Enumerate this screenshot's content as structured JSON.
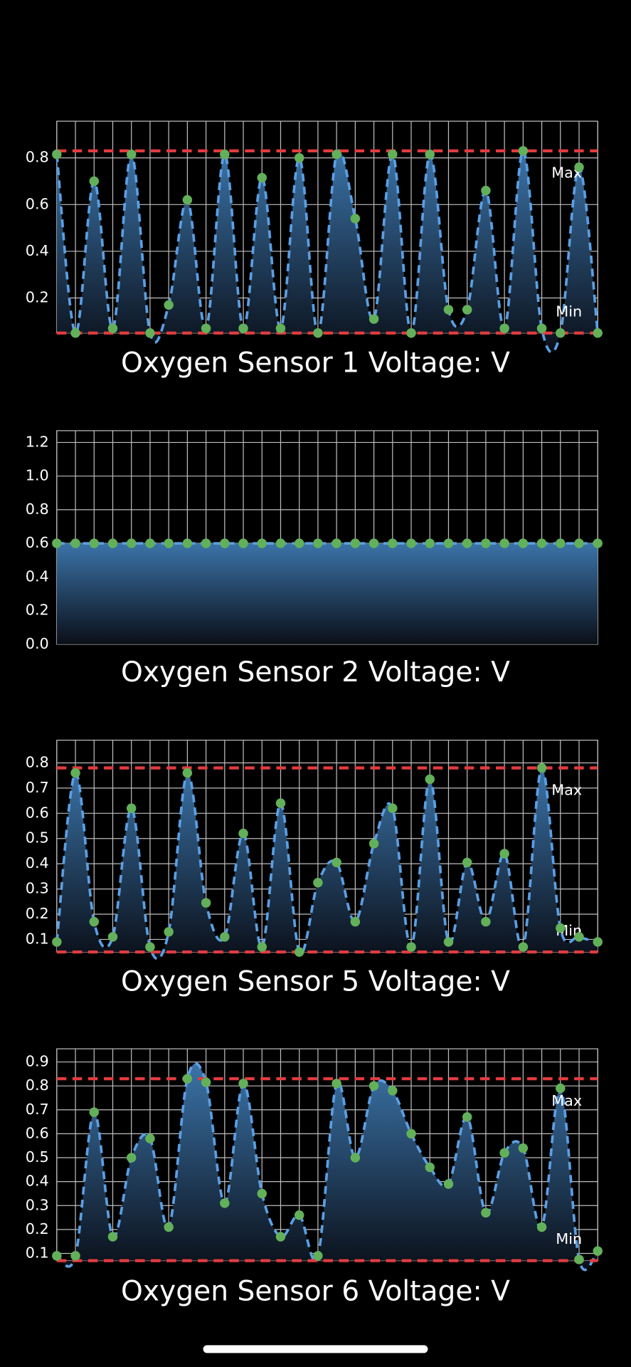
{
  "chart_data": [
    {
      "type": "line",
      "title": "Oxygen Sensor 1 Voltage: V",
      "values": [
        0.815,
        0.05,
        0.7,
        0.07,
        0.815,
        0.05,
        0.17,
        0.62,
        0.07,
        0.815,
        0.07,
        0.715,
        0.07,
        0.8,
        0.05,
        0.815,
        0.54,
        0.11,
        0.815,
        0.05,
        0.815,
        0.15,
        0.15,
        0.66,
        0.07,
        0.83,
        0.07,
        0.05,
        0.76,
        0.05
      ],
      "ylim": [
        0.05,
        0.957
      ],
      "yticks": [
        0.2,
        0.4,
        0.6,
        0.8
      ],
      "grid": true,
      "max": 0.83,
      "max_label": "Max",
      "min": 0.05,
      "min_label": "Min",
      "color": "#5b9fe3",
      "marker_color": "#63b05a",
      "limit_color": "#e23b3f"
    },
    {
      "type": "line",
      "title": "Oxygen Sensor 2 Voltage: V",
      "values": [
        0.6,
        0.6,
        0.6,
        0.6,
        0.6,
        0.6,
        0.6,
        0.6,
        0.6,
        0.6,
        0.6,
        0.6,
        0.6,
        0.6,
        0.6,
        0.6,
        0.6,
        0.6,
        0.6,
        0.6,
        0.6,
        0.6,
        0.6,
        0.6,
        0.6,
        0.6,
        0.6,
        0.6,
        0.6,
        0.6
      ],
      "ylim": [
        0,
        1.27
      ],
      "yticks": [
        {
          "value": 0,
          "label": "0.0"
        },
        0.2,
        0.4,
        0.6,
        0.8,
        {
          "value": 1,
          "label": "1.0"
        },
        1.2
      ],
      "grid": true,
      "color": "#5b9fe3",
      "marker_color": "#63b05a"
    },
    {
      "type": "line",
      "title": "Oxygen Sensor 5 Voltage: V",
      "values": [
        0.09,
        0.76,
        0.17,
        0.11,
        0.62,
        0.07,
        0.13,
        0.76,
        0.245,
        0.11,
        0.52,
        0.07,
        0.64,
        0.05,
        0.325,
        0.405,
        0.17,
        0.48,
        0.62,
        0.07,
        0.735,
        0.09,
        0.405,
        0.17,
        0.44,
        0.07,
        0.78,
        0.145,
        0.11,
        0.09
      ],
      "ylim": [
        0.05,
        0.89
      ],
      "yticks": [
        0.1,
        0.2,
        0.3,
        0.4,
        0.5,
        0.6,
        0.7,
        0.8
      ],
      "grid": true,
      "max": 0.78,
      "max_label": "Max",
      "min": 0.05,
      "min_label": "Min",
      "color": "#5b9fe3",
      "marker_color": "#63b05a",
      "limit_color": "#e23b3f"
    },
    {
      "type": "line",
      "title": "Oxygen Sensor 6 Voltage: V",
      "values": [
        0.09,
        0.09,
        0.69,
        0.17,
        0.5,
        0.58,
        0.21,
        0.83,
        0.815,
        0.31,
        0.81,
        0.35,
        0.17,
        0.26,
        0.09,
        0.81,
        0.5,
        0.8,
        0.78,
        0.6,
        0.46,
        0.39,
        0.67,
        0.27,
        0.52,
        0.54,
        0.21,
        0.79,
        0.075,
        0.11
      ],
      "ylim": [
        0.07,
        0.955
      ],
      "yticks": [
        0.1,
        0.2,
        0.3,
        0.4,
        0.5,
        0.6,
        0.7,
        0.8,
        0.9
      ],
      "grid": true,
      "max": 0.83,
      "max_label": "Max",
      "min": 0.07,
      "min_label": "Min",
      "color": "#5b9fe3",
      "marker_color": "#63b05a",
      "limit_color": "#e23b3f"
    }
  ]
}
